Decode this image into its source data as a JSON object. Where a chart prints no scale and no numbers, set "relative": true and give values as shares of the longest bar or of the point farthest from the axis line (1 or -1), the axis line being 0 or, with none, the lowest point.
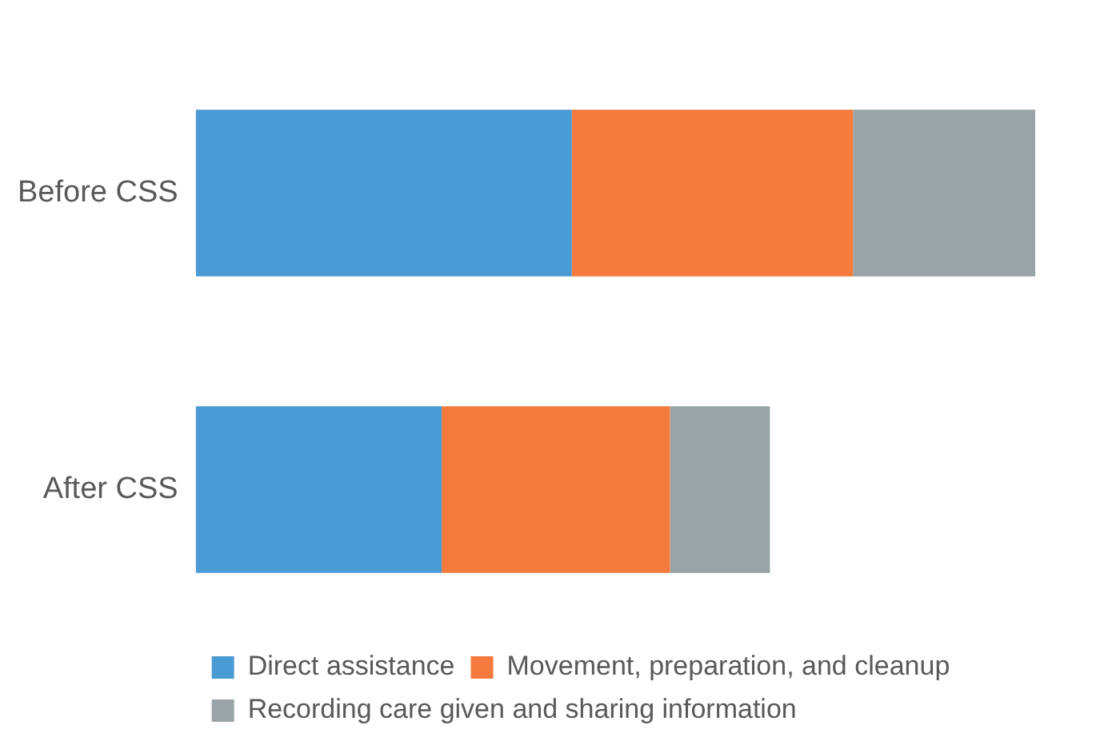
{
  "chart_data": {
    "type": "bar",
    "orientation": "horizontal",
    "stacked": true,
    "relative": true,
    "categories": [
      "Before CSS",
      "After CSS"
    ],
    "series": [
      {
        "name": "Direct assistance",
        "color": "#4a9ad4",
        "values": [
          0.448,
          0.293
        ]
      },
      {
        "name": "Movement, preparation, and cleanup",
        "color": "#f47a3d",
        "values": [
          0.335,
          0.272
        ]
      },
      {
        "name": "Recording care given and sharing information",
        "color": "#9aa3a5",
        "values": [
          0.217,
          0.119
        ]
      }
    ],
    "legend": "bottom"
  }
}
